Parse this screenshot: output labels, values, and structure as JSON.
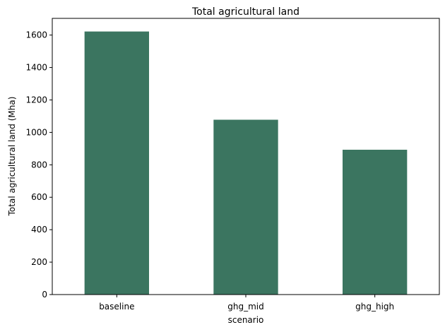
{
  "chart_data": {
    "type": "bar",
    "title": "Total agricultural land",
    "xlabel": "scenario",
    "ylabel": "Total agricultural land (Mha)",
    "categories": [
      "baseline",
      "ghg_mid",
      "ghg_high"
    ],
    "values": [
      1622,
      1078,
      893
    ],
    "ylim": [
      0,
      1703
    ],
    "yticks": [
      0,
      200,
      400,
      600,
      800,
      1000,
      1200,
      1400,
      1600
    ],
    "bar_color": "#3b7560",
    "grid": false,
    "legend": "none"
  }
}
